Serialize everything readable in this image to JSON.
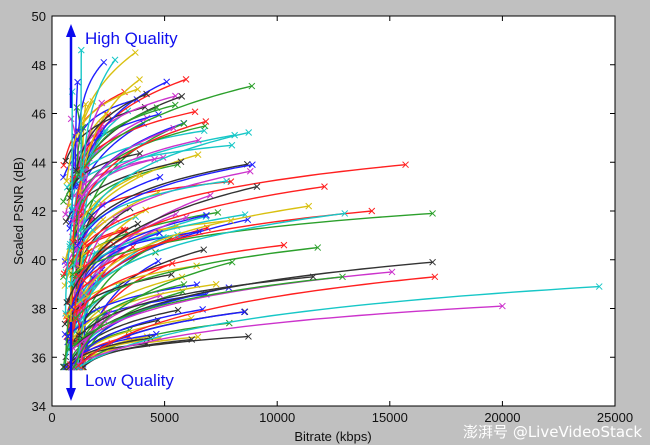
{
  "chart_data": {
    "type": "line",
    "xlabel": "Bitrate (kbps)",
    "ylabel": "Scaled PSNR (dB)",
    "xlim": [
      0,
      25000
    ],
    "ylim": [
      34,
      50
    ],
    "xticks": [
      0,
      5000,
      10000,
      15000,
      20000,
      25000
    ],
    "yticks": [
      34,
      36,
      38,
      40,
      42,
      44,
      46,
      48,
      50
    ],
    "grid": false,
    "legend": "none",
    "annotations": {
      "high": "High Quality",
      "low": "Low Quality",
      "arrow_color": "#0a0aee"
    },
    "markers": "x at each curve endpoint",
    "curve_colors": [
      "#ff2020",
      "#2ca02c",
      "#1f1fff",
      "#17c7c7",
      "#cc33cc",
      "#333333",
      "#d9c010"
    ],
    "highlight_curves": [
      {
        "end_x": 24300,
        "end_y": 38.9,
        "color": "#17c7c7"
      },
      {
        "end_x": 20000,
        "end_y": 38.1,
        "color": "#cc33cc"
      },
      {
        "end_x": 17000,
        "end_y": 39.3,
        "color": "#ff2020"
      },
      {
        "end_x": 16900,
        "end_y": 39.9,
        "color": "#333333"
      },
      {
        "end_x": 16900,
        "end_y": 41.9,
        "color": "#2ca02c"
      },
      {
        "end_x": 15700,
        "end_y": 43.9,
        "color": "#ff2020"
      },
      {
        "end_x": 15100,
        "end_y": 39.5,
        "color": "#cc33cc"
      },
      {
        "end_x": 14200,
        "end_y": 42.0,
        "color": "#ff2020"
      },
      {
        "end_x": 13000,
        "end_y": 41.9,
        "color": "#17c7c7"
      },
      {
        "end_x": 12900,
        "end_y": 39.3,
        "color": "#2ca02c"
      },
      {
        "end_x": 12100,
        "end_y": 43.0,
        "color": "#ff2020"
      },
      {
        "end_x": 11800,
        "end_y": 40.5,
        "color": "#2ca02c"
      },
      {
        "end_x": 11600,
        "end_y": 39.3,
        "color": "#333333"
      },
      {
        "end_x": 11400,
        "end_y": 42.2,
        "color": "#d9c010"
      },
      {
        "end_x": 10300,
        "end_y": 40.6,
        "color": "#ff2020"
      },
      {
        "end_x": 9100,
        "end_y": 43.0,
        "color": "#333333"
      },
      {
        "end_x": 8900,
        "end_y": 43.9,
        "color": "#1f1fff"
      },
      {
        "end_x": 8000,
        "end_y": 39.9,
        "color": "#2ca02c"
      },
      {
        "end_x": 6500,
        "end_y": 44.9,
        "color": "#cc33cc"
      },
      {
        "end_x": 5400,
        "end_y": 45.4,
        "color": "#cc33cc"
      },
      {
        "end_x": 4200,
        "end_y": 46.8,
        "color": "#333333"
      },
      {
        "end_x": 3700,
        "end_y": 48.5,
        "color": "#d9c010"
      },
      {
        "end_x": 2800,
        "end_y": 48.2,
        "color": "#17c7c7"
      },
      {
        "end_x": 2300,
        "end_y": 48.1,
        "color": "#1f1fff"
      },
      {
        "end_x": 1300,
        "end_y": 48.6,
        "color": "#17c7c7"
      },
      {
        "end_x": 900,
        "end_y": 46.9,
        "color": "#17c7c7"
      }
    ],
    "bulk_curves": {
      "count": 150,
      "x_range": [
        800,
        9000
      ],
      "y_end_range": [
        36.5,
        47.5
      ]
    }
  },
  "watermark": "澎湃号 @LiveVideoStack"
}
